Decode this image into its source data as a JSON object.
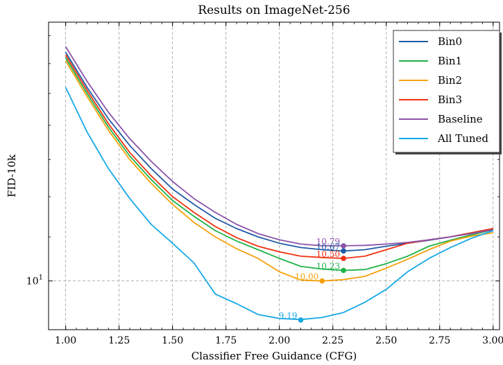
{
  "chart_data": {
    "type": "line",
    "title": "Results on ImageNet-256",
    "xlabel": "Classifier Free Guidance (CFG)",
    "ylabel": "FID-10k",
    "xlim": [
      0.92,
      3.03
    ],
    "ylim": [
      9.0,
      17.5
    ],
    "yscale": "log",
    "xticks": [
      "1.00",
      "1.25",
      "1.50",
      "1.75",
      "2.00",
      "2.25",
      "2.50",
      "2.75",
      "3.00"
    ],
    "xtick_values": [
      1.0,
      1.25,
      1.5,
      1.75,
      2.0,
      2.25,
      2.5,
      2.75,
      3.0
    ],
    "ytick_base": "10",
    "ytick_exp": "1",
    "ytick_value": 10,
    "grid": true,
    "legend_position": "top-right",
    "x": [
      1.0,
      1.1,
      1.2,
      1.3,
      1.4,
      1.5,
      1.6,
      1.7,
      1.8,
      1.9,
      2.0,
      2.1,
      2.2,
      2.3,
      2.4,
      2.5,
      2.6,
      2.7,
      2.8,
      2.9,
      3.0
    ],
    "series": [
      {
        "name": "Bin0",
        "color": "#1f5aa6",
        "values": [
          16.4,
          15.2,
          14.2,
          13.4,
          12.75,
          12.2,
          11.8,
          11.45,
          11.2,
          11.0,
          10.85,
          10.75,
          10.7,
          10.67,
          10.7,
          10.78,
          10.85,
          10.92,
          11.0,
          11.1,
          11.2
        ]
      },
      {
        "name": "Bin1",
        "color": "#1db346",
        "values": [
          16.2,
          15.0,
          13.95,
          13.1,
          12.45,
          11.9,
          11.5,
          11.15,
          10.9,
          10.7,
          10.5,
          10.32,
          10.26,
          10.23,
          10.25,
          10.38,
          10.55,
          10.78,
          10.92,
          11.05,
          11.17
        ]
      },
      {
        "name": "Bin2",
        "color": "#f5a00a",
        "values": [
          16.1,
          14.9,
          13.85,
          13.0,
          12.35,
          11.8,
          11.35,
          11.0,
          10.72,
          10.5,
          10.2,
          10.02,
          10.0,
          10.03,
          10.1,
          10.28,
          10.48,
          10.7,
          10.9,
          11.02,
          11.1
        ]
      },
      {
        "name": "Bin3",
        "color": "#f0300f",
        "values": [
          16.3,
          15.1,
          14.05,
          13.2,
          12.55,
          12.0,
          11.6,
          11.25,
          10.98,
          10.78,
          10.65,
          10.55,
          10.52,
          10.5,
          10.55,
          10.7,
          10.85,
          10.93,
          11.0,
          11.1,
          11.2
        ]
      },
      {
        "name": "Baseline",
        "color": "#8a52a8",
        "values": [
          16.6,
          15.4,
          14.4,
          13.6,
          12.95,
          12.4,
          11.95,
          11.6,
          11.3,
          11.08,
          10.93,
          10.83,
          10.79,
          10.79,
          10.8,
          10.83,
          10.87,
          10.93,
          11.0,
          11.08,
          11.17
        ]
      },
      {
        "name": "All Tuned",
        "color": "#14a8e6",
        "values": [
          15.2,
          13.8,
          12.75,
          11.95,
          11.3,
          10.85,
          10.4,
          9.72,
          9.52,
          9.3,
          9.22,
          9.2,
          9.24,
          9.34,
          9.55,
          9.82,
          10.2,
          10.5,
          10.75,
          10.97,
          11.15
        ]
      }
    ],
    "annotations": [
      {
        "series": "Baseline",
        "x": 2.3,
        "y": 10.79,
        "text": "10.79"
      },
      {
        "series": "Bin0",
        "x": 2.3,
        "y": 10.67,
        "text": "10.67"
      },
      {
        "series": "Bin3",
        "x": 2.3,
        "y": 10.5,
        "text": "10.50"
      },
      {
        "series": "Bin1",
        "x": 2.3,
        "y": 10.23,
        "text": "10.23"
      },
      {
        "series": "Bin2",
        "x": 2.2,
        "y": 10.0,
        "text": "10.00"
      },
      {
        "series": "All Tuned",
        "x": 2.1,
        "y": 9.19,
        "text": "9.19"
      }
    ]
  }
}
